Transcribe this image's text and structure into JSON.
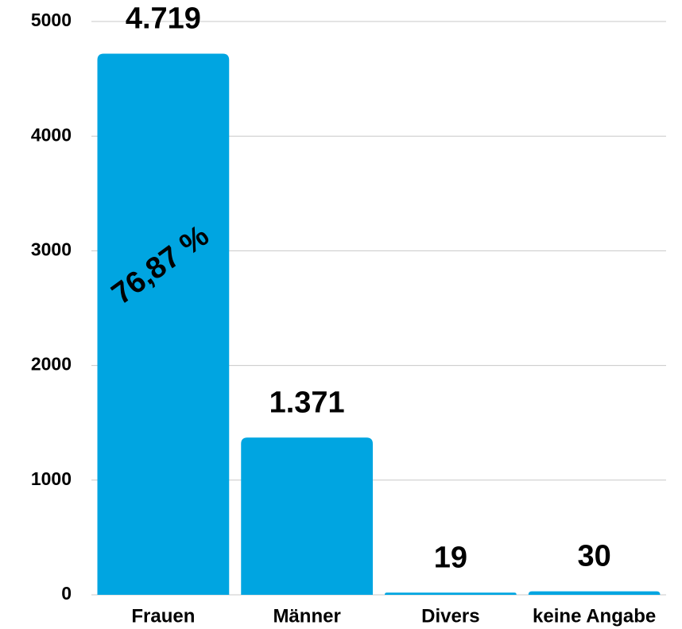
{
  "chart_data": {
    "type": "bar",
    "categories": [
      "Frauen",
      "Männer",
      "Divers",
      "keine Angabe"
    ],
    "values": [
      4719,
      1371,
      19,
      30
    ],
    "value_labels": [
      "4.719",
      "1.371",
      "19",
      "30"
    ],
    "annotation": "76,87 %",
    "color": "#00a5e1",
    "ylim": [
      0,
      5000
    ],
    "yticks": [
      0,
      1000,
      2000,
      3000,
      4000,
      5000
    ],
    "grid": true
  }
}
